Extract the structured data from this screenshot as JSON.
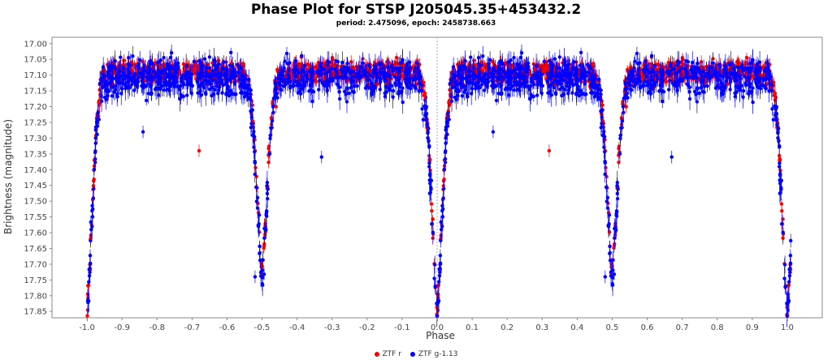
{
  "chart_data": {
    "type": "scatter",
    "title": "Phase Plot for STSP J205045.35+453432.2",
    "subtitle": "period: 2.475096, epoch: 2458738.663",
    "xlabel": "Phase",
    "ylabel": "Brightness (magnitude)",
    "xlim": [
      -1.1,
      1.1
    ],
    "ylim": [
      17.87,
      16.98
    ],
    "y_inverted": true,
    "x_ticks": [
      "-1.0",
      "-0.9",
      "-0.8",
      "-0.7",
      "-0.6",
      "-0.5",
      "-0.4",
      "-0.3",
      "-0.2",
      "-0.1",
      "0.0",
      "0.1",
      "0.2",
      "0.3",
      "0.4",
      "0.5",
      "0.6",
      "0.7",
      "0.8",
      "0.9",
      "1.0"
    ],
    "y_ticks": [
      "17.00",
      "17.05",
      "17.10",
      "17.15",
      "17.20",
      "17.25",
      "17.30",
      "17.35",
      "17.40",
      "17.45",
      "17.50",
      "17.55",
      "17.60",
      "17.65",
      "17.70",
      "17.75",
      "17.80",
      "17.85"
    ],
    "grid": false,
    "reference_line_x": 0.0,
    "legend_position": "bottom",
    "series": [
      {
        "name": "ZTF r",
        "color": "#ff0000",
        "light_curve": {
          "baseline": 17.09,
          "primary_min_depth": 17.84,
          "secondary_min_depth": 17.72,
          "primary_phase": 0.0,
          "secondary_phase": 0.5,
          "eclipse_half_width": 0.03
        },
        "outliers": [
          {
            "x": -0.68,
            "y": 17.34
          },
          {
            "x": 0.32,
            "y": 17.34
          },
          {
            "x": -0.46,
            "y": 17.2
          },
          {
            "x": 0.54,
            "y": 17.2
          }
        ]
      },
      {
        "name": "ZTF g-1.13",
        "color": "#0000ff",
        "light_curve": {
          "baseline": 17.11,
          "primary_min_depth": 17.86,
          "secondary_min_depth": 17.74,
          "primary_phase": 0.0,
          "secondary_phase": 0.5,
          "eclipse_half_width": 0.03
        },
        "outliers": [
          {
            "x": -0.33,
            "y": 17.36
          },
          {
            "x": 0.67,
            "y": 17.36
          },
          {
            "x": -0.84,
            "y": 17.28
          },
          {
            "x": 0.16,
            "y": 17.28
          },
          {
            "x": -0.52,
            "y": 17.74
          },
          {
            "x": 0.48,
            "y": 17.74
          }
        ]
      }
    ]
  }
}
